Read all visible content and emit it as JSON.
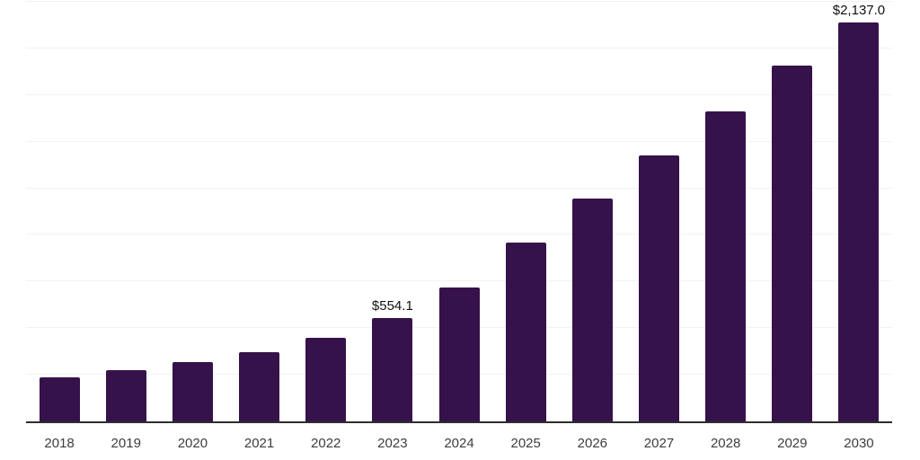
{
  "chart_data": {
    "type": "bar",
    "title": "",
    "xlabel": "",
    "ylabel": "",
    "categories": [
      "2018",
      "2019",
      "2020",
      "2021",
      "2022",
      "2023",
      "2024",
      "2025",
      "2026",
      "2027",
      "2028",
      "2029",
      "2030"
    ],
    "values": [
      238,
      276,
      318,
      371,
      448,
      554.1,
      719,
      957,
      1193,
      1428,
      1663,
      1908,
      2137.0
    ],
    "ylim": [
      0,
      2250
    ],
    "gridline_step": 250,
    "grid": true,
    "legend": "none",
    "data_labels": [
      {
        "category": "2023",
        "text": "$554.1"
      },
      {
        "category": "2030",
        "text": "$2,137.0"
      }
    ]
  },
  "colors": {
    "background": "#ffffff",
    "bar": "#36124a",
    "gridline": "#f2f2f2",
    "axis_line": "#2e2e2e",
    "tick_label": "#3d3d3d",
    "data_label": "#111111"
  }
}
